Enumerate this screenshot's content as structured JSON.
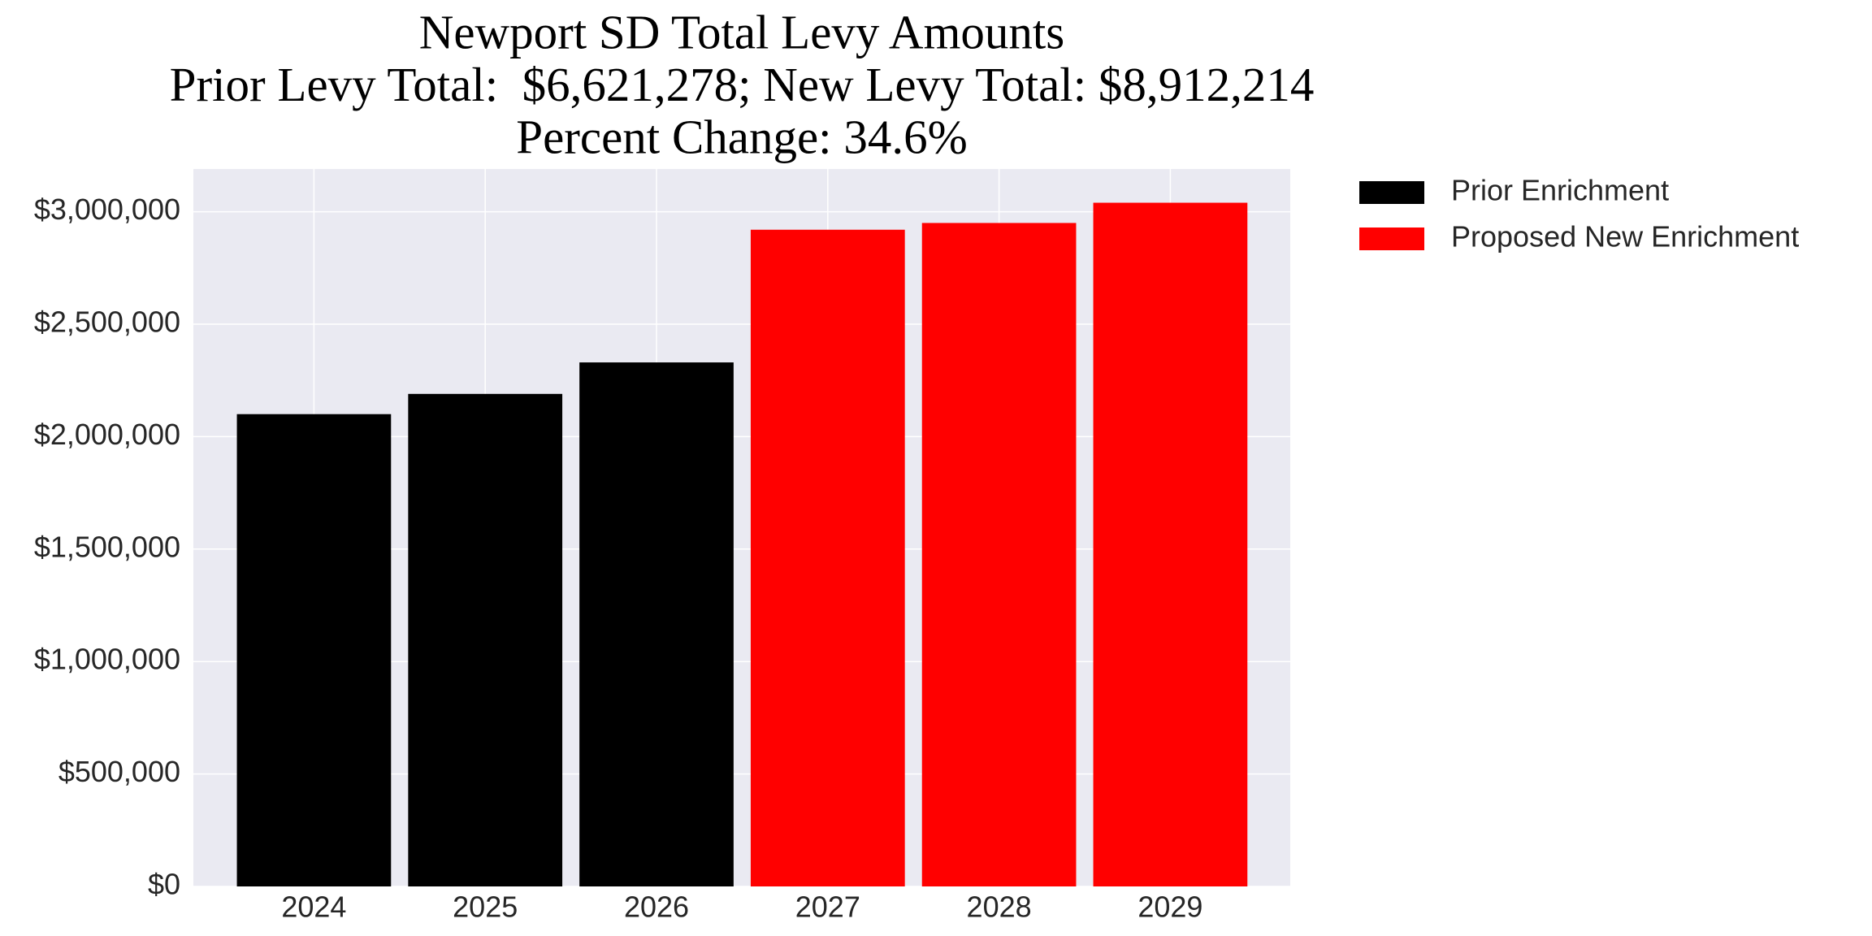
{
  "chart_data": {
    "type": "bar",
    "title": [
      "Newport SD Total Levy Amounts",
      "Prior Levy Total:  $6,621,278; New Levy Total: $8,912,214",
      "Percent Change: 34.6%"
    ],
    "categories": [
      "2024",
      "2025",
      "2026",
      "2027",
      "2028",
      "2029"
    ],
    "series": [
      {
        "name": "Prior Enrichment",
        "color": "#000000",
        "values": [
          2100000,
          2190000,
          2330000,
          null,
          null,
          null
        ]
      },
      {
        "name": "Proposed New Enrichment",
        "color": "#ff0000",
        "values": [
          null,
          null,
          null,
          2920000,
          2950000,
          3040000
        ]
      }
    ],
    "ylim": [
      0,
      3190000
    ],
    "yticks": [
      {
        "value": 0,
        "label": "$0"
      },
      {
        "value": 500000,
        "label": "$500,000"
      },
      {
        "value": 1000000,
        "label": "$1,000,000"
      },
      {
        "value": 1500000,
        "label": "$1,500,000"
      },
      {
        "value": 2000000,
        "label": "$2,000,000"
      },
      {
        "value": 2500000,
        "label": "$2,500,000"
      },
      {
        "value": 3000000,
        "label": "$3,000,000"
      }
    ],
    "grid": true,
    "legend": "outside-right"
  }
}
